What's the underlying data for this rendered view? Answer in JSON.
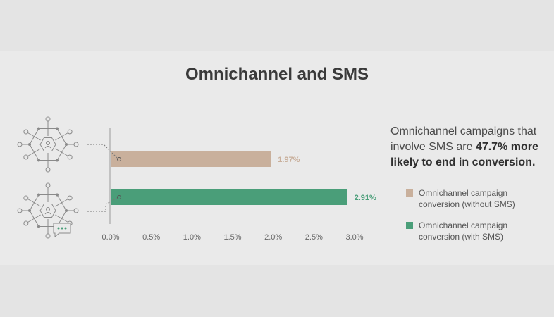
{
  "title": "Omnichannel and SMS",
  "description": {
    "prefix": "Omnichannel campaigns that involve SMS are ",
    "highlight": "47.7% more likely to end in conversion."
  },
  "colors": {
    "without_sms": "#c9b09c",
    "with_sms": "#4a9e79",
    "axis": "#9a9a9a",
    "icon": "#8a8a8a"
  },
  "icons": [
    "omnichannel-network-icon",
    "omnichannel-sms-network-icon"
  ],
  "chart_data": {
    "type": "bar",
    "orientation": "horizontal",
    "title": "Omnichannel and SMS",
    "xlabel": "",
    "ylabel": "",
    "xlim": [
      0,
      3.0
    ],
    "ticks": [
      "0.0%",
      "0.5%",
      "1.0%",
      "1.5%",
      "2.0%",
      "2.5%",
      "3.0%"
    ],
    "tick_values": [
      0,
      0.5,
      1.0,
      1.5,
      2.0,
      2.5,
      3.0
    ],
    "grid": false,
    "legend_position": "right",
    "series": [
      {
        "name": "Omnichannel campaign conversion (without SMS)",
        "value": 1.97,
        "label": "1.97%",
        "color": "#c9b09c"
      },
      {
        "name": "Omnichannel campaign conversion (with SMS)",
        "value": 2.91,
        "label": "2.91%",
        "color": "#4a9e79"
      }
    ]
  }
}
